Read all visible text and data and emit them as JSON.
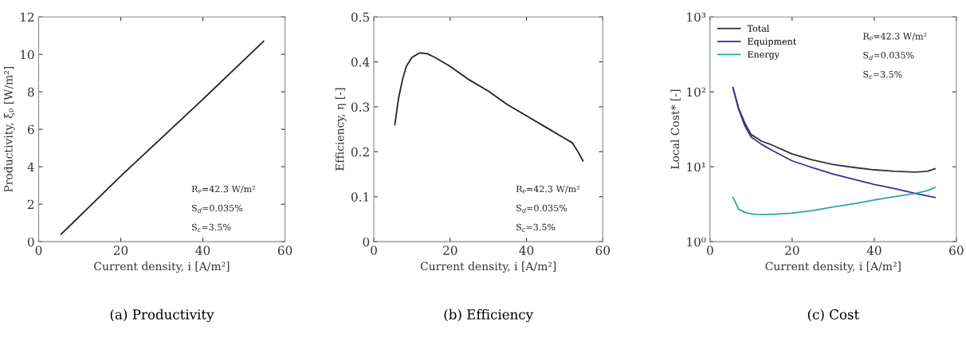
{
  "chart_data": [
    {
      "type": "line",
      "title": "(a) Productivity",
      "xlabel": "Current density, i [A/m²]",
      "ylabel": "Productivity, ξₚ [W/m²]",
      "xlim": [
        0,
        60
      ],
      "xticks": [
        0,
        20,
        40,
        60
      ],
      "ylim": [
        0,
        12
      ],
      "yticks": [
        0,
        2,
        4,
        6,
        8,
        10,
        12
      ],
      "grid": false,
      "legend": false,
      "annotations": [
        "Rₚ=42.3 W/m²",
        "S$_{d}$=0.035%",
        "S$_{c}$=3.5%"
      ],
      "series": [
        {
          "color": "#222222",
          "x": [
            5.5,
            20,
            40,
            54.8
          ],
          "values": [
            0.4,
            3.5,
            7.6,
            10.7
          ]
        }
      ]
    },
    {
      "type": "line",
      "title": "(b) Efficiency",
      "xlabel": "Current density, i [A/m²]",
      "ylabel": "Efficiency, η [-]",
      "xlim": [
        0,
        60
      ],
      "xticks": [
        0,
        20,
        40,
        60
      ],
      "ylim": [
        0,
        0.5
      ],
      "yticks": [
        0,
        0.1,
        0.2,
        0.3,
        0.4,
        0.5
      ],
      "grid": false,
      "legend": false,
      "annotations": [
        "Rₚ=42.3 W/m²",
        "S$_{d}$=0.035%",
        "S$_{c}$=3.5%"
      ],
      "series": [
        {
          "color": "#222222",
          "x": [
            5.5,
            6.5,
            7.5,
            8.5,
            10,
            12,
            14,
            16,
            20,
            25,
            30,
            35,
            40,
            45,
            50,
            52,
            53.5,
            54.8
          ],
          "values": [
            0.26,
            0.32,
            0.36,
            0.39,
            0.41,
            0.42,
            0.418,
            0.41,
            0.39,
            0.36,
            0.335,
            0.305,
            0.28,
            0.255,
            0.23,
            0.22,
            0.2,
            0.18
          ]
        }
      ]
    },
    {
      "type": "line",
      "title": "(c) Cost",
      "xlabel": "Current density, i [A/m²]",
      "ylabel": "Local Cost* [-]",
      "log": "y",
      "xlim": [
        0,
        60
      ],
      "xticks": [
        0,
        20,
        40,
        60
      ],
      "ylim": [
        1,
        1000
      ],
      "yticks": [
        {
          "value": 1,
          "label": "10⁰"
        },
        {
          "value": 10,
          "label": "10¹"
        },
        {
          "value": 100,
          "label": "10²"
        },
        {
          "value": 1000,
          "label": "10³"
        }
      ],
      "grid": false,
      "legend": "top left",
      "annotations": [
        "Rₚ=42.3 W/m²",
        "S$_{d}$=0.035%",
        "S$_{c}$=3.5%"
      ],
      "series": [
        {
          "name": "Total",
          "color": "#333333",
          "x": [
            5.6,
            7,
            8.5,
            10,
            12.5,
            15,
            20,
            25,
            30,
            35,
            40,
            45,
            50,
            53,
            54.8
          ],
          "values": [
            113,
            60,
            38,
            27,
            22,
            19.6,
            14.8,
            12.3,
            10.7,
            9.8,
            9.1,
            8.7,
            8.5,
            8.7,
            9.4
          ]
        },
        {
          "name": "Equipment",
          "color": "#3b2e9a",
          "x": [
            5.6,
            7,
            8.5,
            10,
            12.5,
            15,
            20,
            25,
            30,
            35,
            40,
            45,
            50,
            54.8
          ],
          "values": [
            113,
            58,
            35,
            25,
            20,
            16.7,
            12,
            9.7,
            8.0,
            6.8,
            5.8,
            5.1,
            4.4,
            3.9
          ]
        },
        {
          "name": "Energy",
          "color": "#2aa89a",
          "x": [
            5.6,
            7,
            9,
            11,
            13.3,
            16,
            20,
            25,
            30,
            35,
            40,
            45,
            50,
            53,
            54.8
          ],
          "values": [
            3.9,
            2.7,
            2.4,
            2.32,
            2.3,
            2.33,
            2.4,
            2.6,
            2.9,
            3.2,
            3.6,
            4.0,
            4.4,
            4.8,
            5.3
          ]
        }
      ]
    }
  ]
}
